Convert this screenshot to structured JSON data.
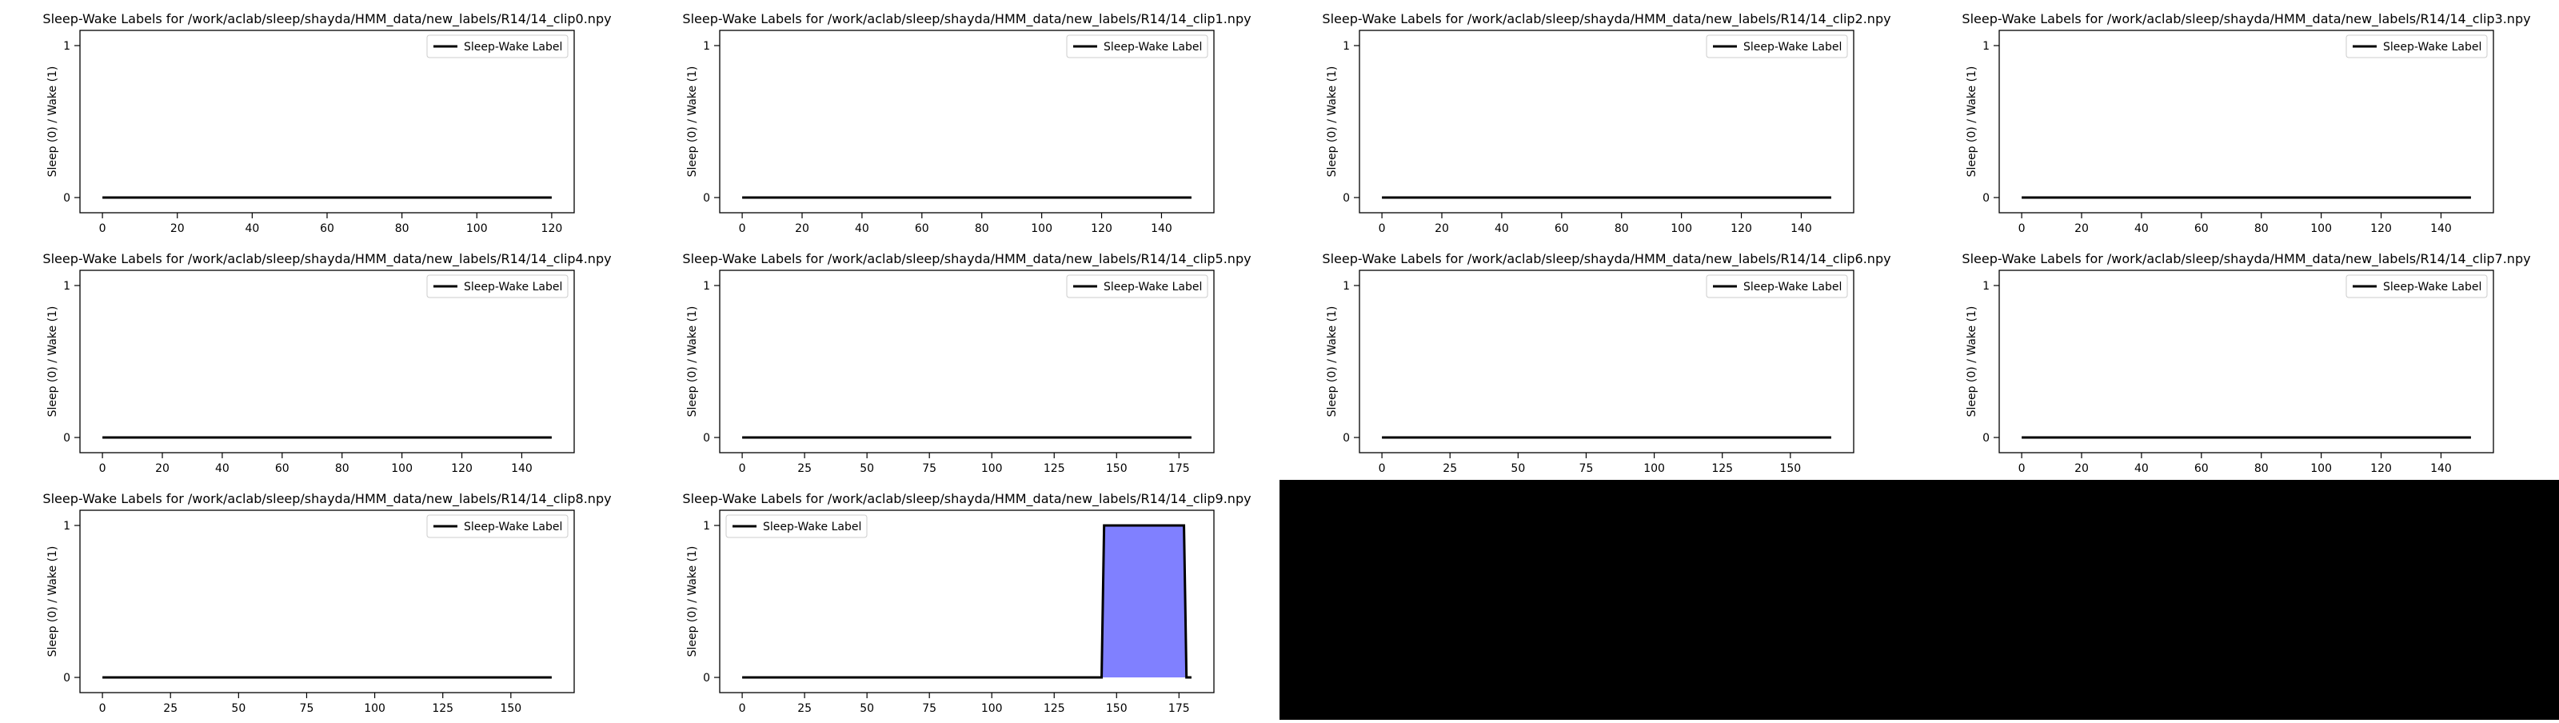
{
  "colors": {
    "line": "#000000",
    "fill": "#8080ff",
    "axis": "#000000",
    "background": "#ffffff",
    "blackout": "#000000"
  },
  "chart_data": [
    {
      "type": "line",
      "title": "Sleep-Wake Labels for /work/aclab/sleep/shayda/HMM_data/new_labels/R14/14_clip0.npy",
      "ylabel": "Sleep (0) / Wake (1)",
      "xlabel": "",
      "legend": "Sleep-Wake Label",
      "legend_loc": "upper right",
      "xlim": [
        -6,
        126
      ],
      "ylim": [
        -0.1,
        1.1
      ],
      "xticks": [
        0,
        20,
        40,
        60,
        80,
        100,
        120
      ],
      "yticks": [
        0,
        1
      ],
      "series": [
        {
          "name": "Sleep-Wake Label",
          "x": [
            0,
            120
          ],
          "y": [
            0,
            0
          ]
        }
      ],
      "fill_regions": []
    },
    {
      "type": "line",
      "title": "Sleep-Wake Labels for /work/aclab/sleep/shayda/HMM_data/new_labels/R14/14_clip1.npy",
      "ylabel": "Sleep (0) / Wake (1)",
      "xlabel": "",
      "legend": "Sleep-Wake Label",
      "legend_loc": "upper right",
      "xlim": [
        -7.5,
        157.5
      ],
      "ylim": [
        -0.1,
        1.1
      ],
      "xticks": [
        0,
        20,
        40,
        60,
        80,
        100,
        120,
        140
      ],
      "yticks": [
        0,
        1
      ],
      "series": [
        {
          "name": "Sleep-Wake Label",
          "x": [
            0,
            150
          ],
          "y": [
            0,
            0
          ]
        }
      ],
      "fill_regions": []
    },
    {
      "type": "line",
      "title": "Sleep-Wake Labels for /work/aclab/sleep/shayda/HMM_data/new_labels/R14/14_clip2.npy",
      "ylabel": "Sleep (0) / Wake (1)",
      "xlabel": "",
      "legend": "Sleep-Wake Label",
      "legend_loc": "upper right",
      "xlim": [
        -7.5,
        157.5
      ],
      "ylim": [
        -0.1,
        1.1
      ],
      "xticks": [
        0,
        20,
        40,
        60,
        80,
        100,
        120,
        140
      ],
      "yticks": [
        0,
        1
      ],
      "series": [
        {
          "name": "Sleep-Wake Label",
          "x": [
            0,
            150
          ],
          "y": [
            0,
            0
          ]
        }
      ],
      "fill_regions": []
    },
    {
      "type": "line",
      "title": "Sleep-Wake Labels for /work/aclab/sleep/shayda/HMM_data/new_labels/R14/14_clip3.npy",
      "ylabel": "Sleep (0) / Wake (1)",
      "xlabel": "",
      "legend": "Sleep-Wake Label",
      "legend_loc": "upper right",
      "xlim": [
        -7.5,
        157.5
      ],
      "ylim": [
        -0.1,
        1.1
      ],
      "xticks": [
        0,
        20,
        40,
        60,
        80,
        100,
        120,
        140
      ],
      "yticks": [
        0,
        1
      ],
      "series": [
        {
          "name": "Sleep-Wake Label",
          "x": [
            0,
            150
          ],
          "y": [
            0,
            0
          ]
        }
      ],
      "fill_regions": []
    },
    {
      "type": "line",
      "title": "Sleep-Wake Labels for /work/aclab/sleep/shayda/HMM_data/new_labels/R14/14_clip4.npy",
      "ylabel": "Sleep (0) / Wake (1)",
      "xlabel": "",
      "legend": "Sleep-Wake Label",
      "legend_loc": "upper right",
      "xlim": [
        -7.5,
        157.5
      ],
      "ylim": [
        -0.1,
        1.1
      ],
      "xticks": [
        0,
        20,
        40,
        60,
        80,
        100,
        120,
        140
      ],
      "yticks": [
        0,
        1
      ],
      "series": [
        {
          "name": "Sleep-Wake Label",
          "x": [
            0,
            150
          ],
          "y": [
            0,
            0
          ]
        }
      ],
      "fill_regions": []
    },
    {
      "type": "line",
      "title": "Sleep-Wake Labels for /work/aclab/sleep/shayda/HMM_data/new_labels/R14/14_clip5.npy",
      "ylabel": "Sleep (0) / Wake (1)",
      "xlabel": "",
      "legend": "Sleep-Wake Label",
      "legend_loc": "upper right",
      "xlim": [
        -9,
        189
      ],
      "ylim": [
        -0.1,
        1.1
      ],
      "xticks": [
        0,
        25,
        50,
        75,
        100,
        125,
        150,
        175
      ],
      "yticks": [
        0,
        1
      ],
      "series": [
        {
          "name": "Sleep-Wake Label",
          "x": [
            0,
            180
          ],
          "y": [
            0,
            0
          ]
        }
      ],
      "fill_regions": []
    },
    {
      "type": "line",
      "title": "Sleep-Wake Labels for /work/aclab/sleep/shayda/HMM_data/new_labels/R14/14_clip6.npy",
      "ylabel": "Sleep (0) / Wake (1)",
      "xlabel": "",
      "legend": "Sleep-Wake Label",
      "legend_loc": "upper right",
      "xlim": [
        -8.25,
        173.25
      ],
      "ylim": [
        -0.1,
        1.1
      ],
      "xticks": [
        0,
        25,
        50,
        75,
        100,
        125,
        150
      ],
      "yticks": [
        0,
        1
      ],
      "series": [
        {
          "name": "Sleep-Wake Label",
          "x": [
            0,
            165
          ],
          "y": [
            0,
            0
          ]
        }
      ],
      "fill_regions": []
    },
    {
      "type": "line",
      "title": "Sleep-Wake Labels for /work/aclab/sleep/shayda/HMM_data/new_labels/R14/14_clip7.npy",
      "ylabel": "Sleep (0) / Wake (1)",
      "xlabel": "",
      "legend": "Sleep-Wake Label",
      "legend_loc": "upper right",
      "xlim": [
        -7.5,
        157.5
      ],
      "ylim": [
        -0.1,
        1.1
      ],
      "xticks": [
        0,
        20,
        40,
        60,
        80,
        100,
        120,
        140
      ],
      "yticks": [
        0,
        1
      ],
      "series": [
        {
          "name": "Sleep-Wake Label",
          "x": [
            0,
            150
          ],
          "y": [
            0,
            0
          ]
        }
      ],
      "fill_regions": []
    },
    {
      "type": "line",
      "title": "Sleep-Wake Labels for /work/aclab/sleep/shayda/HMM_data/new_labels/R14/14_clip8.npy",
      "ylabel": "Sleep (0) / Wake (1)",
      "xlabel": "",
      "legend": "Sleep-Wake Label",
      "legend_loc": "upper right",
      "xlim": [
        -8.25,
        173.25
      ],
      "ylim": [
        -0.1,
        1.1
      ],
      "xticks": [
        0,
        25,
        50,
        75,
        100,
        125,
        150
      ],
      "yticks": [
        0,
        1
      ],
      "series": [
        {
          "name": "Sleep-Wake Label",
          "x": [
            0,
            165
          ],
          "y": [
            0,
            0
          ]
        }
      ],
      "fill_regions": []
    },
    {
      "type": "area",
      "title": "Sleep-Wake Labels for /work/aclab/sleep/shayda/HMM_data/new_labels/R14/14_clip9.npy",
      "ylabel": "Sleep (0) / Wake (1)",
      "xlabel": "",
      "legend": "Sleep-Wake Label",
      "legend_loc": "upper left",
      "xlim": [
        -9,
        189
      ],
      "ylim": [
        -0.1,
        1.1
      ],
      "xticks": [
        0,
        25,
        50,
        75,
        100,
        125,
        150,
        175
      ],
      "yticks": [
        0,
        1
      ],
      "series": [
        {
          "name": "Sleep-Wake Label",
          "x": [
            0,
            144,
            145,
            177,
            178,
            180
          ],
          "y": [
            0,
            0,
            1,
            1,
            0,
            0
          ]
        }
      ],
      "fill_regions": [
        {
          "x": [
            144,
            145,
            177,
            178
          ],
          "y": [
            0,
            1,
            1,
            0
          ]
        }
      ]
    }
  ]
}
